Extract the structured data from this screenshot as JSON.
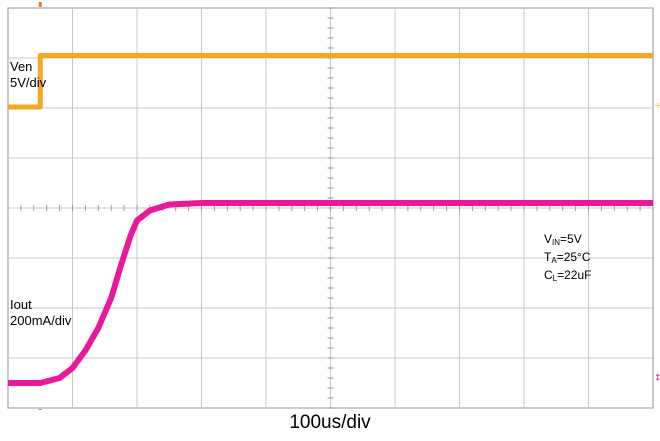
{
  "chart_data": {
    "type": "line",
    "title": "",
    "xlabel": "100us/div",
    "ylabel": "",
    "grid": true,
    "divisions": {
      "x": 10,
      "y": 8
    },
    "x_unit": "div",
    "y_unit": "div",
    "xlim": [
      0,
      10
    ],
    "ylim": [
      0,
      8
    ],
    "series": [
      {
        "name": "Ven",
        "scale_label": "5V/div",
        "color": "#F5A623",
        "points": [
          [
            0,
            6.02
          ],
          [
            0.5,
            6.02
          ],
          [
            0.5,
            7.05
          ],
          [
            10,
            7.05
          ]
        ]
      },
      {
        "name": "Iout",
        "scale_label": "200mA/div",
        "color": "#E8199A",
        "points": [
          [
            0,
            0.5
          ],
          [
            0.5,
            0.5
          ],
          [
            0.8,
            0.6
          ],
          [
            1.0,
            0.8
          ],
          [
            1.2,
            1.15
          ],
          [
            1.4,
            1.6
          ],
          [
            1.6,
            2.2
          ],
          [
            1.75,
            2.85
          ],
          [
            1.9,
            3.45
          ],
          [
            2.0,
            3.75
          ],
          [
            2.2,
            3.95
          ],
          [
            2.5,
            4.07
          ],
          [
            3.0,
            4.1
          ],
          [
            10,
            4.1
          ]
        ]
      }
    ],
    "annotations": [
      {
        "main": "V",
        "sub": "IN",
        "tail": "=5V"
      },
      {
        "main": "T",
        "sub": "A",
        "tail": "=25°C"
      },
      {
        "main": "C",
        "sub": "L",
        "tail": "=22uF"
      }
    ]
  },
  "colors": {
    "grid": "#c8c8c8",
    "border": "#a8a8a8",
    "ven": "#F5A623",
    "iout": "#E8199A",
    "trigger": "#F07820"
  }
}
